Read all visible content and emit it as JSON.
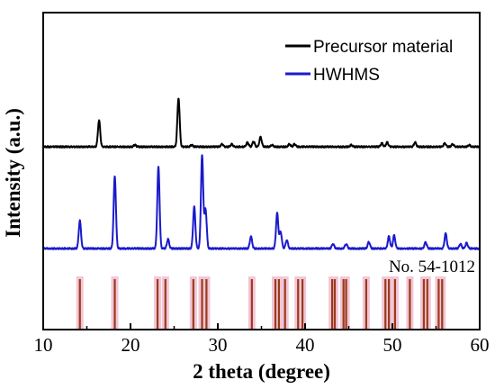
{
  "chart_data": {
    "type": "line",
    "xlabel": "2 theta (degree)",
    "ylabel": "Intensity (a.u.)",
    "xlim": [
      10,
      60
    ],
    "xticks": [
      10,
      20,
      30,
      40,
      50,
      60
    ],
    "yticks_shown": false,
    "grid": false,
    "legend_position": "top-right",
    "annotation": "No. 54-1012",
    "series": [
      {
        "name": "Precursor material",
        "color": "#000000",
        "baseline": 0,
        "peaks": [
          {
            "x": 16.4,
            "y": 30
          },
          {
            "x": 20.5,
            "y": 2
          },
          {
            "x": 25.5,
            "y": 55
          },
          {
            "x": 27.0,
            "y": 2
          },
          {
            "x": 30.5,
            "y": 3
          },
          {
            "x": 31.6,
            "y": 3
          },
          {
            "x": 33.4,
            "y": 5
          },
          {
            "x": 34.1,
            "y": 6
          },
          {
            "x": 34.9,
            "y": 11
          },
          {
            "x": 36.2,
            "y": 2
          },
          {
            "x": 38.2,
            "y": 3
          },
          {
            "x": 38.8,
            "y": 3
          },
          {
            "x": 45.3,
            "y": 2
          },
          {
            "x": 48.8,
            "y": 4
          },
          {
            "x": 49.4,
            "y": 5
          },
          {
            "x": 52.6,
            "y": 5
          },
          {
            "x": 56.0,
            "y": 4
          },
          {
            "x": 56.9,
            "y": 3
          },
          {
            "x": 58.8,
            "y": 2
          }
        ]
      },
      {
        "name": "HWHMS",
        "color": "#1a1acc",
        "baseline": 0,
        "peaks": [
          {
            "x": 14.2,
            "y": 30
          },
          {
            "x": 18.2,
            "y": 78
          },
          {
            "x": 23.2,
            "y": 88
          },
          {
            "x": 24.3,
            "y": 10
          },
          {
            "x": 27.3,
            "y": 45
          },
          {
            "x": 28.2,
            "y": 100
          },
          {
            "x": 28.6,
            "y": 42
          },
          {
            "x": 33.8,
            "y": 13
          },
          {
            "x": 36.8,
            "y": 38
          },
          {
            "x": 37.2,
            "y": 18
          },
          {
            "x": 37.9,
            "y": 9
          },
          {
            "x": 43.2,
            "y": 5
          },
          {
            "x": 44.7,
            "y": 5
          },
          {
            "x": 47.3,
            "y": 7
          },
          {
            "x": 49.6,
            "y": 13
          },
          {
            "x": 50.2,
            "y": 14
          },
          {
            "x": 53.8,
            "y": 7
          },
          {
            "x": 56.1,
            "y": 16
          },
          {
            "x": 57.8,
            "y": 5
          },
          {
            "x": 58.5,
            "y": 6
          }
        ]
      }
    ],
    "reference_lines": [
      14.2,
      18.2,
      23.1,
      24.0,
      27.2,
      28.2,
      28.7,
      33.9,
      36.6,
      37.0,
      37.7,
      39.2,
      39.7,
      43.1,
      43.4,
      44.4,
      44.7,
      47.0,
      49.2,
      49.6,
      50.3,
      52.0,
      53.6,
      54.0,
      55.3,
      55.7
    ]
  }
}
